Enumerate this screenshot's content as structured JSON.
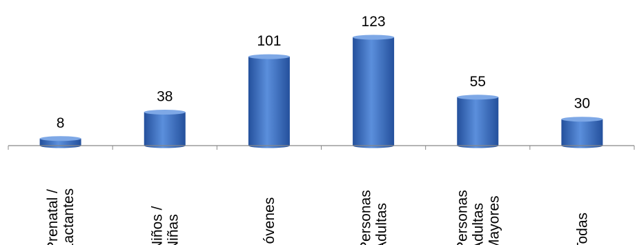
{
  "chart_data": {
    "type": "bar",
    "title": "",
    "xlabel": "",
    "ylabel": "",
    "categories": [
      [
        "Prenatal /",
        "Lactantes"
      ],
      [
        "Niños /",
        "Niñas"
      ],
      [
        "Jóvenes"
      ],
      [
        "Personas",
        "Adultas"
      ],
      [
        "Personas",
        "Adultas",
        "Mayores"
      ],
      [
        "Todas"
      ]
    ],
    "values": [
      8,
      38,
      101,
      123,
      55,
      30
    ],
    "value_labels": [
      "8",
      "38",
      "101",
      "123",
      "55",
      "30"
    ],
    "ylim": [
      0,
      123
    ],
    "grid": false,
    "legend": "none",
    "bar_style": "3d-cylinder",
    "colors": {
      "bar_light": "#5b8fdc",
      "bar_mid": "#3a6fc4",
      "bar_dark": "#24509c",
      "bar_top": "#7ea8e6",
      "axis": "#888888",
      "text": "#000000"
    }
  }
}
